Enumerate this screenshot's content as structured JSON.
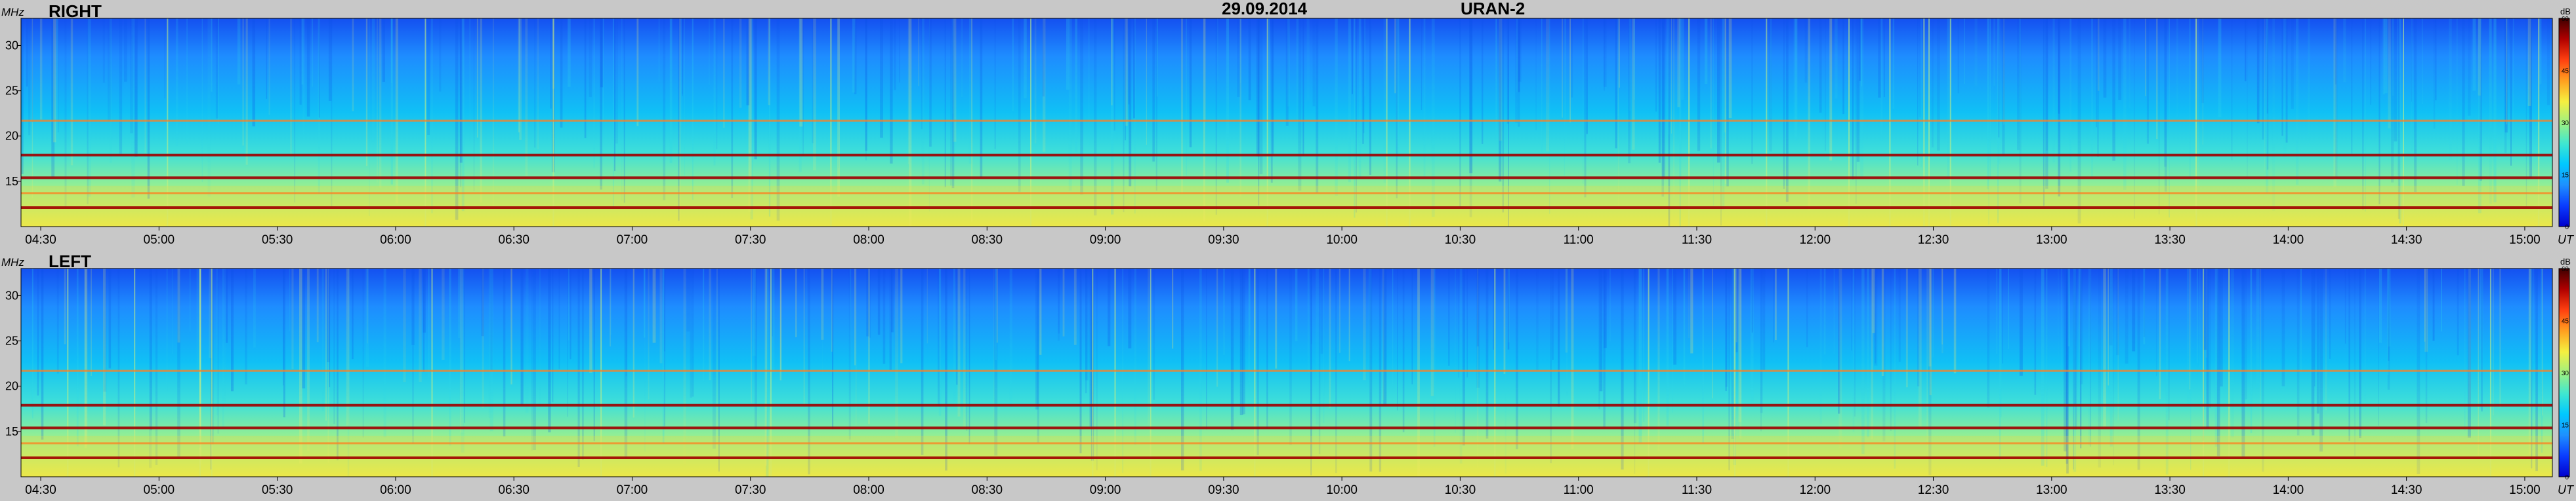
{
  "header": {
    "date": "29.09.2014",
    "instrument": "URAN-2"
  },
  "colors": {
    "background": "#c8c8c8",
    "tick_text": "#000000",
    "colormap": [
      "#0000cd",
      "#0a3cff",
      "#1e90ff",
      "#00c8ff",
      "#40e8d0",
      "#a0f080",
      "#f5f040",
      "#ffa020",
      "#ff4010",
      "#b00000",
      "#400000"
    ]
  },
  "chart_data": [
    {
      "type": "heatmap",
      "title": "RIGHT",
      "ylabel": "MHz",
      "xlabel": "UT",
      "ylim": [
        10,
        33
      ],
      "xlim": [
        "04:25",
        "15:07"
      ],
      "y_ticks": [
        "15",
        "20",
        "25",
        "30"
      ],
      "x_ticks": [
        "04:30",
        "05:00",
        "05:30",
        "06:00",
        "06:30",
        "07:00",
        "07:30",
        "08:00",
        "08:30",
        "09:00",
        "09:30",
        "10:00",
        "10:30",
        "11:00",
        "11:30",
        "12:00",
        "12:30",
        "13:00",
        "13:30",
        "14:00",
        "14:30",
        "15:00"
      ],
      "colorbar": {
        "label": "dB",
        "range": [
          0,
          60
        ],
        "ticks": [
          "0",
          "15",
          "30",
          "45",
          "60"
        ]
      },
      "persistent_bands_mhz": [
        {
          "freq": 21.7,
          "level": "medium"
        },
        {
          "freq": 17.9,
          "level": "high"
        },
        {
          "freq": 15.4,
          "level": "high"
        },
        {
          "freq": 13.7,
          "level": "medium"
        },
        {
          "freq": 12.1,
          "level": "high"
        }
      ]
    },
    {
      "type": "heatmap",
      "title": "LEFT",
      "ylabel": "MHz",
      "xlabel": "UT",
      "ylim": [
        10,
        33
      ],
      "xlim": [
        "04:25",
        "15:07"
      ],
      "y_ticks": [
        "15",
        "20",
        "25",
        "30"
      ],
      "x_ticks": [
        "04:30",
        "05:00",
        "05:30",
        "06:00",
        "06:30",
        "07:00",
        "07:30",
        "08:00",
        "08:30",
        "09:00",
        "09:30",
        "10:00",
        "10:30",
        "11:00",
        "11:30",
        "12:00",
        "12:30",
        "13:00",
        "13:30",
        "14:00",
        "14:30",
        "15:00"
      ],
      "colorbar": {
        "label": "dB",
        "range": [
          0,
          60
        ],
        "ticks": [
          "0",
          "15",
          "30",
          "45",
          "60"
        ]
      },
      "persistent_bands_mhz": [
        {
          "freq": 21.7,
          "level": "medium"
        },
        {
          "freq": 17.9,
          "level": "high"
        },
        {
          "freq": 15.4,
          "level": "high"
        },
        {
          "freq": 13.7,
          "level": "medium"
        },
        {
          "freq": 12.1,
          "level": "high"
        }
      ]
    }
  ]
}
